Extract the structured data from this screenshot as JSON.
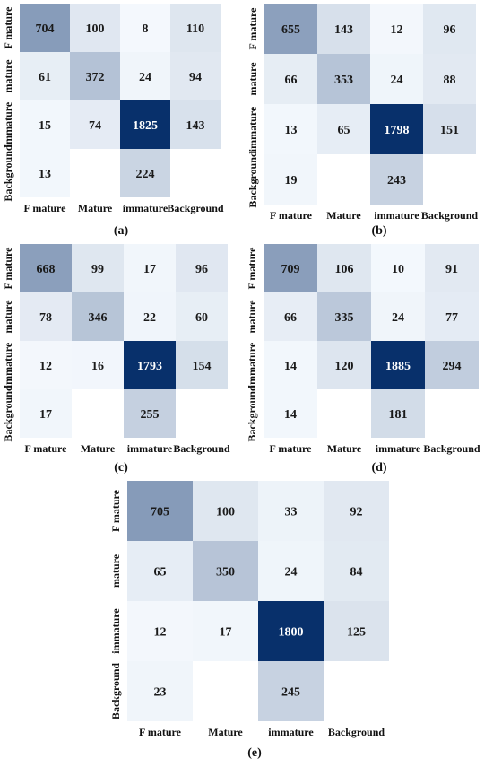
{
  "chart_data": [
    {
      "type": "heatmap",
      "panel_label": "(a)",
      "x_categories": [
        "F mature",
        "Mature",
        "immature",
        "Background"
      ],
      "y_categories": [
        "F mature",
        "mature",
        "immature",
        "Background"
      ],
      "values": [
        [
          704,
          100,
          8,
          110
        ],
        [
          61,
          372,
          24,
          94
        ],
        [
          15,
          74,
          1825,
          143
        ],
        [
          13,
          null,
          224,
          null
        ]
      ],
      "colormap": [
        "#f7fbff",
        "#08306b"
      ],
      "grid": false
    },
    {
      "type": "heatmap",
      "panel_label": "(b)",
      "x_categories": [
        "F mature",
        "Mature",
        "immature",
        "Background"
      ],
      "y_categories": [
        "F mature",
        "mature",
        "immature",
        "Background"
      ],
      "values": [
        [
          655,
          143,
          12,
          96
        ],
        [
          66,
          353,
          24,
          88
        ],
        [
          13,
          65,
          1798,
          151
        ],
        [
          19,
          null,
          243,
          null
        ]
      ],
      "colormap": [
        "#f7fbff",
        "#08306b"
      ],
      "grid": false
    },
    {
      "type": "heatmap",
      "panel_label": "(c)",
      "x_categories": [
        "F mature",
        "Mature",
        "immature",
        "Background"
      ],
      "y_categories": [
        "F mature",
        "mature",
        "immature",
        "Background"
      ],
      "values": [
        [
          668,
          99,
          17,
          96
        ],
        [
          78,
          346,
          22,
          60
        ],
        [
          12,
          16,
          1793,
          154
        ],
        [
          17,
          null,
          255,
          null
        ]
      ],
      "colormap": [
        "#f7fbff",
        "#08306b"
      ],
      "grid": false
    },
    {
      "type": "heatmap",
      "panel_label": "(d)",
      "x_categories": [
        "F mature",
        "Mature",
        "immature",
        "Background"
      ],
      "y_categories": [
        "F mature",
        "mature",
        "immature",
        "Background"
      ],
      "values": [
        [
          709,
          106,
          10,
          91
        ],
        [
          66,
          335,
          24,
          77
        ],
        [
          14,
          120,
          1885,
          294
        ],
        [
          14,
          null,
          181,
          null
        ]
      ],
      "colormap": [
        "#f7fbff",
        "#08306b"
      ],
      "grid": false
    },
    {
      "type": "heatmap",
      "panel_label": "(e)",
      "x_categories": [
        "F mature",
        "Mature",
        "immature",
        "Background"
      ],
      "y_categories": [
        "F mature",
        "mature",
        "immature",
        "Background"
      ],
      "values": [
        [
          705,
          100,
          33,
          92
        ],
        [
          65,
          350,
          24,
          84
        ],
        [
          12,
          17,
          1800,
          125
        ],
        [
          23,
          null,
          245,
          null
        ]
      ],
      "colormap": [
        "#f7fbff",
        "#08306b"
      ],
      "grid": false
    }
  ]
}
